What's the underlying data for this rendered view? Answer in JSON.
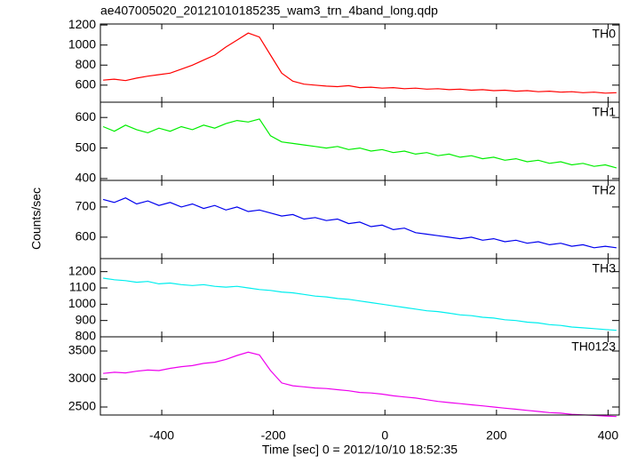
{
  "chart_data": {
    "type": "line",
    "title": "ae407005020_20121010185235_wam3_trn_4band_long.qdp",
    "x_label": "Time [sec] 0 = 2012/10/10 18:52:35",
    "y_label": "Counts/sec",
    "xlim": [
      -510,
      420
    ],
    "xticks": [
      -400,
      -200,
      0,
      200,
      400
    ],
    "x": [
      -505,
      -485,
      -465,
      -445,
      -425,
      -405,
      -385,
      -365,
      -345,
      -325,
      -305,
      -285,
      -265,
      -245,
      -225,
      -205,
      -185,
      -165,
      -145,
      -125,
      -105,
      -85,
      -65,
      -45,
      -25,
      -5,
      15,
      35,
      55,
      75,
      95,
      115,
      135,
      155,
      175,
      195,
      215,
      235,
      255,
      275,
      295,
      315,
      335,
      355,
      375,
      395,
      415
    ],
    "series": [
      {
        "name": "TH0",
        "color": "#ff0000",
        "ylim": [
          430,
          1210
        ],
        "yticks": [
          600,
          800,
          1000,
          1200
        ],
        "values": [
          650,
          660,
          645,
          670,
          690,
          705,
          720,
          760,
          800,
          850,
          900,
          980,
          1050,
          1120,
          1080,
          900,
          720,
          640,
          610,
          600,
          590,
          585,
          595,
          575,
          580,
          570,
          575,
          565,
          570,
          560,
          565,
          555,
          560,
          550,
          555,
          545,
          550,
          540,
          545,
          535,
          540,
          530,
          535,
          525,
          530,
          520,
          525
        ]
      },
      {
        "name": "TH1",
        "color": "#00ee00",
        "ylim": [
          394,
          650
        ],
        "yticks": [
          400,
          500,
          600
        ],
        "values": [
          570,
          555,
          575,
          560,
          550,
          565,
          555,
          570,
          560,
          575,
          565,
          580,
          590,
          585,
          595,
          540,
          520,
          515,
          510,
          505,
          500,
          505,
          495,
          500,
          490,
          495,
          485,
          490,
          480,
          485,
          475,
          480,
          470,
          475,
          465,
          470,
          460,
          465,
          455,
          460,
          450,
          455,
          445,
          450,
          440,
          445,
          435
        ]
      },
      {
        "name": "TH2",
        "color": "#0000ee",
        "ylim": [
          529,
          788
        ],
        "yticks": [
          600,
          700
        ],
        "values": [
          725,
          715,
          730,
          710,
          720,
          705,
          715,
          700,
          710,
          695,
          705,
          690,
          700,
          685,
          690,
          680,
          670,
          675,
          660,
          665,
          655,
          660,
          645,
          650,
          635,
          640,
          625,
          630,
          615,
          610,
          605,
          600,
          595,
          600,
          590,
          595,
          585,
          590,
          580,
          585,
          575,
          580,
          570,
          575,
          565,
          570,
          565
        ]
      },
      {
        "name": "TH3",
        "color": "#00eeee",
        "ylim": [
          800,
          1280
        ],
        "yticks": [
          800,
          900,
          1000,
          1100,
          1200
        ],
        "values": [
          1160,
          1150,
          1145,
          1135,
          1140,
          1125,
          1130,
          1120,
          1115,
          1120,
          1110,
          1105,
          1110,
          1100,
          1090,
          1085,
          1075,
          1070,
          1060,
          1050,
          1045,
          1035,
          1030,
          1020,
          1010,
          1000,
          990,
          980,
          970,
          960,
          955,
          945,
          935,
          930,
          920,
          915,
          905,
          900,
          890,
          885,
          875,
          870,
          860,
          855,
          850,
          845,
          840
        ]
      },
      {
        "name": "TH0123",
        "color": "#ee00ee",
        "ylim": [
          2357,
          3754
        ],
        "yticks": [
          2500,
          3000,
          3500
        ],
        "values": [
          3100,
          3120,
          3110,
          3140,
          3160,
          3150,
          3190,
          3220,
          3240,
          3280,
          3300,
          3350,
          3420,
          3480,
          3430,
          3150,
          2930,
          2880,
          2860,
          2840,
          2830,
          2810,
          2790,
          2760,
          2750,
          2730,
          2700,
          2680,
          2660,
          2630,
          2600,
          2580,
          2560,
          2540,
          2520,
          2500,
          2480,
          2460,
          2440,
          2420,
          2400,
          2390,
          2370,
          2360,
          2350,
          2340,
          2330
        ]
      }
    ]
  }
}
